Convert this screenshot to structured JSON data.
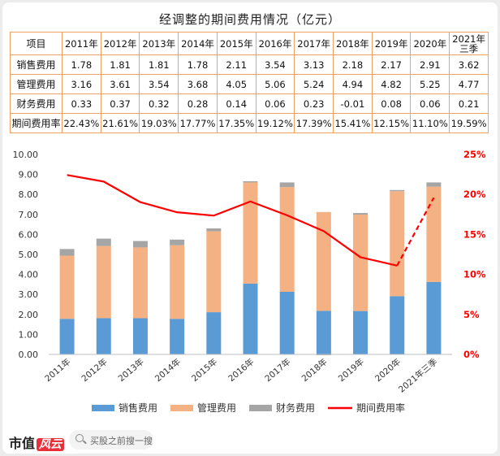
{
  "title": "经调整的期间费用情况（亿元）",
  "table": {
    "header_label": "项目",
    "years": [
      "2011年",
      "2012年",
      "2013年",
      "2014年",
      "2015年",
      "2016年",
      "2017年",
      "2018年",
      "2019年",
      "2020年",
      "2021年三季"
    ],
    "rows": [
      {
        "label": "销售费用",
        "values": [
          "1.78",
          "1.81",
          "1.81",
          "1.78",
          "2.11",
          "3.54",
          "3.13",
          "2.18",
          "2.17",
          "2.91",
          "3.62"
        ]
      },
      {
        "label": "管理费用",
        "values": [
          "3.16",
          "3.61",
          "3.54",
          "3.68",
          "4.05",
          "5.06",
          "5.24",
          "4.94",
          "4.82",
          "5.25",
          "4.77"
        ]
      },
      {
        "label": "财务费用",
        "values": [
          "0.33",
          "0.37",
          "0.32",
          "0.28",
          "0.14",
          "0.06",
          "0.23",
          "-0.01",
          "0.08",
          "0.06",
          "0.21"
        ]
      },
      {
        "label": "期间费用率",
        "values": [
          "22.43%",
          "21.61%",
          "19.03%",
          "17.77%",
          "17.35%",
          "19.12%",
          "17.39%",
          "15.41%",
          "12.15%",
          "11.10%",
          "19.59%"
        ]
      }
    ]
  },
  "chart_data": {
    "type": "bar",
    "stacked": true,
    "categories": [
      "2011年",
      "2012年",
      "2013年",
      "2014年",
      "2015年",
      "2016年",
      "2017年",
      "2018年",
      "2019年",
      "2020年",
      "2021年三季"
    ],
    "series": [
      {
        "name": "销售费用",
        "color": "#5b9bd5",
        "values": [
          1.78,
          1.81,
          1.81,
          1.78,
          2.11,
          3.54,
          3.13,
          2.18,
          2.17,
          2.91,
          3.62
        ]
      },
      {
        "name": "管理费用",
        "color": "#f4b183",
        "values": [
          3.16,
          3.61,
          3.54,
          3.68,
          4.05,
          5.06,
          5.24,
          4.94,
          4.82,
          5.25,
          4.77
        ]
      },
      {
        "name": "财务费用",
        "color": "#a5a5a5",
        "values": [
          0.33,
          0.37,
          0.32,
          0.28,
          0.14,
          0.06,
          0.23,
          -0.01,
          0.08,
          0.06,
          0.21
        ]
      }
    ],
    "line_series": {
      "name": "期间费用率",
      "color": "#ff0000",
      "values": [
        22.43,
        21.61,
        19.03,
        17.77,
        17.35,
        19.12,
        17.39,
        15.41,
        12.15,
        11.1,
        19.59
      ],
      "dashed_last_segment": true
    },
    "y_left": {
      "min": 0,
      "max": 10,
      "step": 1,
      "ticks": [
        "0.00",
        "1.00",
        "2.00",
        "3.00",
        "4.00",
        "5.00",
        "6.00",
        "7.00",
        "8.00",
        "9.00",
        "10.00"
      ]
    },
    "y_right": {
      "min": 0,
      "max": 25,
      "ticks": [
        "0%",
        "5%",
        "10%",
        "15%",
        "20%",
        "25%"
      ],
      "color": "#ff0000"
    }
  },
  "footer": {
    "brand_main": "市值",
    "brand_accent": "风云",
    "search_placeholder": "买股之前搜一搜"
  }
}
